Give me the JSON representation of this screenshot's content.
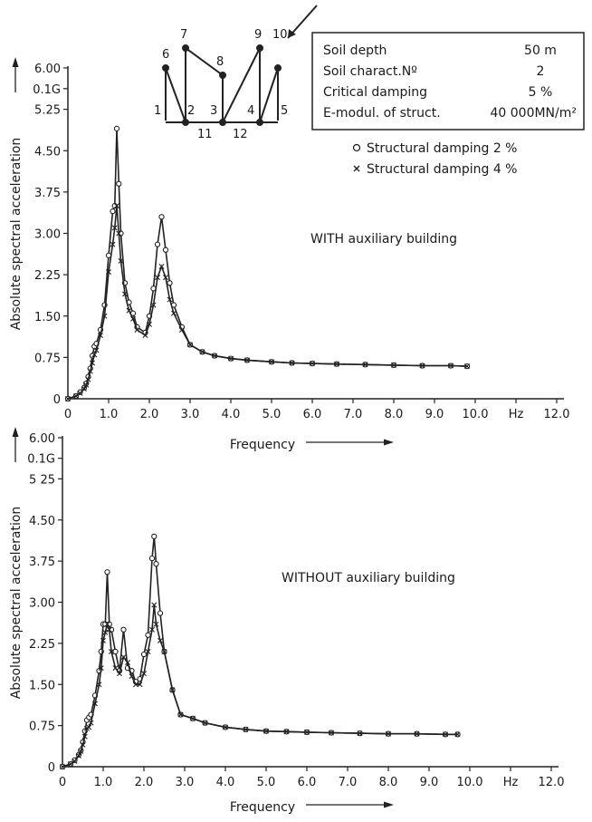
{
  "legend_box": {
    "rows": [
      {
        "label": "Soil depth",
        "value": "50  m"
      },
      {
        "label": "Soil charact.Nº",
        "value": "2"
      },
      {
        "label": "Critical damping",
        "value": "5  %"
      },
      {
        "label": "E-modul. of struct.",
        "value": "40 000MN/m²"
      }
    ]
  },
  "series_legend": [
    {
      "marker": "circle",
      "label": "Structural damping  2  %"
    },
    {
      "marker": "cross",
      "label": "Structural damping  4  %"
    }
  ],
  "structure": {
    "nodes": [
      "1",
      "2",
      "3",
      "4",
      "5",
      "6",
      "7",
      "8",
      "9",
      "10",
      "11",
      "12"
    ]
  },
  "colors": {
    "line": "#222222",
    "background": "#ffffff"
  },
  "chart_data": [
    {
      "type": "line",
      "title": "WITH auxiliary building",
      "xlabel": "Frequency",
      "ylabel": "Absolute spectral acceleration",
      "xunit": "Hz",
      "xlim": [
        0,
        12
      ],
      "ylim": [
        0,
        6
      ],
      "xticks": [
        "0",
        "1.0",
        "2.0",
        "3.0",
        "4.0",
        "5.0",
        "6.0",
        "7.0",
        "8.0",
        "9.0",
        "10.0",
        "Hz",
        "12.0"
      ],
      "yticks": [
        "0",
        "0.75",
        "1.50",
        "2.25",
        "3.00",
        "3.75",
        "4.50",
        "5.25",
        "0.1G",
        "6.00"
      ],
      "series": [
        {
          "name": "Structural damping  2  %",
          "marker": "circle",
          "x": [
            0.0,
            0.2,
            0.3,
            0.4,
            0.45,
            0.5,
            0.55,
            0.6,
            0.65,
            0.7,
            0.8,
            0.9,
            1.0,
            1.1,
            1.15,
            1.2,
            1.25,
            1.3,
            1.4,
            1.5,
            1.6,
            1.7,
            1.9,
            2.0,
            2.1,
            2.2,
            2.3,
            2.4,
            2.5,
            2.6,
            2.8,
            3.0,
            3.3,
            3.6,
            4.0,
            4.4,
            5.0,
            5.5,
            6.0,
            6.6,
            7.3,
            8.0,
            8.7,
            9.4,
            9.8
          ],
          "y": [
            0.0,
            0.05,
            0.12,
            0.2,
            0.28,
            0.4,
            0.55,
            0.78,
            0.95,
            1.0,
            1.25,
            1.7,
            2.6,
            3.4,
            3.5,
            4.9,
            3.9,
            3.0,
            2.1,
            1.75,
            1.55,
            1.3,
            1.2,
            1.5,
            2.0,
            2.8,
            3.3,
            2.7,
            2.1,
            1.7,
            1.3,
            0.98,
            0.85,
            0.78,
            0.73,
            0.7,
            0.67,
            0.65,
            0.64,
            0.63,
            0.62,
            0.61,
            0.6,
            0.6,
            0.59
          ]
        },
        {
          "name": "Structural damping  4  %",
          "marker": "cross",
          "x": [
            0.0,
            0.2,
            0.3,
            0.4,
            0.45,
            0.5,
            0.55,
            0.6,
            0.65,
            0.7,
            0.8,
            0.9,
            1.0,
            1.1,
            1.15,
            1.2,
            1.25,
            1.3,
            1.4,
            1.5,
            1.6,
            1.7,
            1.9,
            2.0,
            2.1,
            2.2,
            2.3,
            2.4,
            2.5,
            2.6,
            2.8,
            3.0,
            3.3,
            3.6,
            4.0,
            4.4,
            5.0,
            5.5,
            6.0,
            6.6,
            7.3,
            8.0,
            8.7,
            9.4,
            9.8
          ],
          "y": [
            0.0,
            0.05,
            0.1,
            0.18,
            0.25,
            0.35,
            0.5,
            0.65,
            0.8,
            0.88,
            1.15,
            1.5,
            2.3,
            2.8,
            3.1,
            3.5,
            3.0,
            2.5,
            1.9,
            1.6,
            1.45,
            1.25,
            1.15,
            1.35,
            1.7,
            2.2,
            2.4,
            2.2,
            1.8,
            1.55,
            1.25,
            0.98,
            0.85,
            0.78,
            0.73,
            0.7,
            0.67,
            0.65,
            0.64,
            0.63,
            0.62,
            0.61,
            0.6,
            0.6,
            0.59
          ]
        }
      ]
    },
    {
      "type": "line",
      "title": "WITHOUT auxiliary building",
      "xlabel": "Frequency",
      "ylabel": "Absolute spectral acceleration",
      "xunit": "Hz",
      "xlim": [
        0,
        12
      ],
      "ylim": [
        0,
        6
      ],
      "xticks": [
        "0",
        "1.0",
        "2.0",
        "3.0",
        "4.0",
        "5.0",
        "6.0",
        "7.0",
        "8.0",
        "9.0",
        "10.0",
        "Hz",
        "12.0"
      ],
      "yticks": [
        "0",
        "0.75",
        "1.50",
        "2.25",
        "3.00",
        "3.75",
        "4.50",
        "5 25",
        "0.1G",
        "6.00"
      ],
      "series": [
        {
          "name": "Structural damping  2  %",
          "marker": "circle",
          "x": [
            0.0,
            0.2,
            0.3,
            0.4,
            0.45,
            0.5,
            0.55,
            0.6,
            0.65,
            0.7,
            0.8,
            0.9,
            0.95,
            1.0,
            1.05,
            1.1,
            1.15,
            1.2,
            1.3,
            1.4,
            1.5,
            1.6,
            1.7,
            1.8,
            1.9,
            2.0,
            2.1,
            2.2,
            2.25,
            2.3,
            2.4,
            2.5,
            2.7,
            2.9,
            3.2,
            3.5,
            4.0,
            4.5,
            5.0,
            5.5,
            6.0,
            6.6,
            7.3,
            8.0,
            8.7,
            9.4,
            9.7
          ],
          "y": [
            0.0,
            0.05,
            0.12,
            0.22,
            0.3,
            0.45,
            0.65,
            0.85,
            0.9,
            0.95,
            1.3,
            1.75,
            2.1,
            2.6,
            2.6,
            3.55,
            2.6,
            2.5,
            2.1,
            1.75,
            2.5,
            1.8,
            1.75,
            1.55,
            1.6,
            2.05,
            2.4,
            3.8,
            4.2,
            3.7,
            2.8,
            2.1,
            1.4,
            0.95,
            0.88,
            0.8,
            0.72,
            0.68,
            0.65,
            0.64,
            0.63,
            0.62,
            0.61,
            0.6,
            0.6,
            0.59,
            0.59
          ]
        },
        {
          "name": "Structural damping  4  %",
          "marker": "cross",
          "x": [
            0.0,
            0.2,
            0.3,
            0.4,
            0.45,
            0.5,
            0.55,
            0.6,
            0.65,
            0.7,
            0.8,
            0.9,
            0.95,
            1.0,
            1.05,
            1.1,
            1.15,
            1.2,
            1.3,
            1.4,
            1.5,
            1.6,
            1.7,
            1.8,
            1.9,
            2.0,
            2.1,
            2.2,
            2.25,
            2.3,
            2.4,
            2.5,
            2.7,
            2.9,
            3.2,
            3.5,
            4.0,
            4.5,
            5.0,
            5.5,
            6.0,
            6.6,
            7.3,
            8.0,
            8.7,
            9.4,
            9.7
          ],
          "y": [
            0.0,
            0.05,
            0.1,
            0.2,
            0.28,
            0.4,
            0.55,
            0.7,
            0.72,
            0.8,
            1.15,
            1.5,
            1.8,
            2.3,
            2.45,
            2.6,
            2.5,
            2.1,
            1.8,
            1.7,
            2.0,
            1.9,
            1.65,
            1.5,
            1.5,
            1.7,
            2.1,
            2.5,
            2.95,
            2.6,
            2.3,
            2.1,
            1.4,
            0.95,
            0.88,
            0.8,
            0.72,
            0.68,
            0.65,
            0.64,
            0.63,
            0.62,
            0.61,
            0.6,
            0.6,
            0.59,
            0.59
          ]
        }
      ]
    }
  ]
}
